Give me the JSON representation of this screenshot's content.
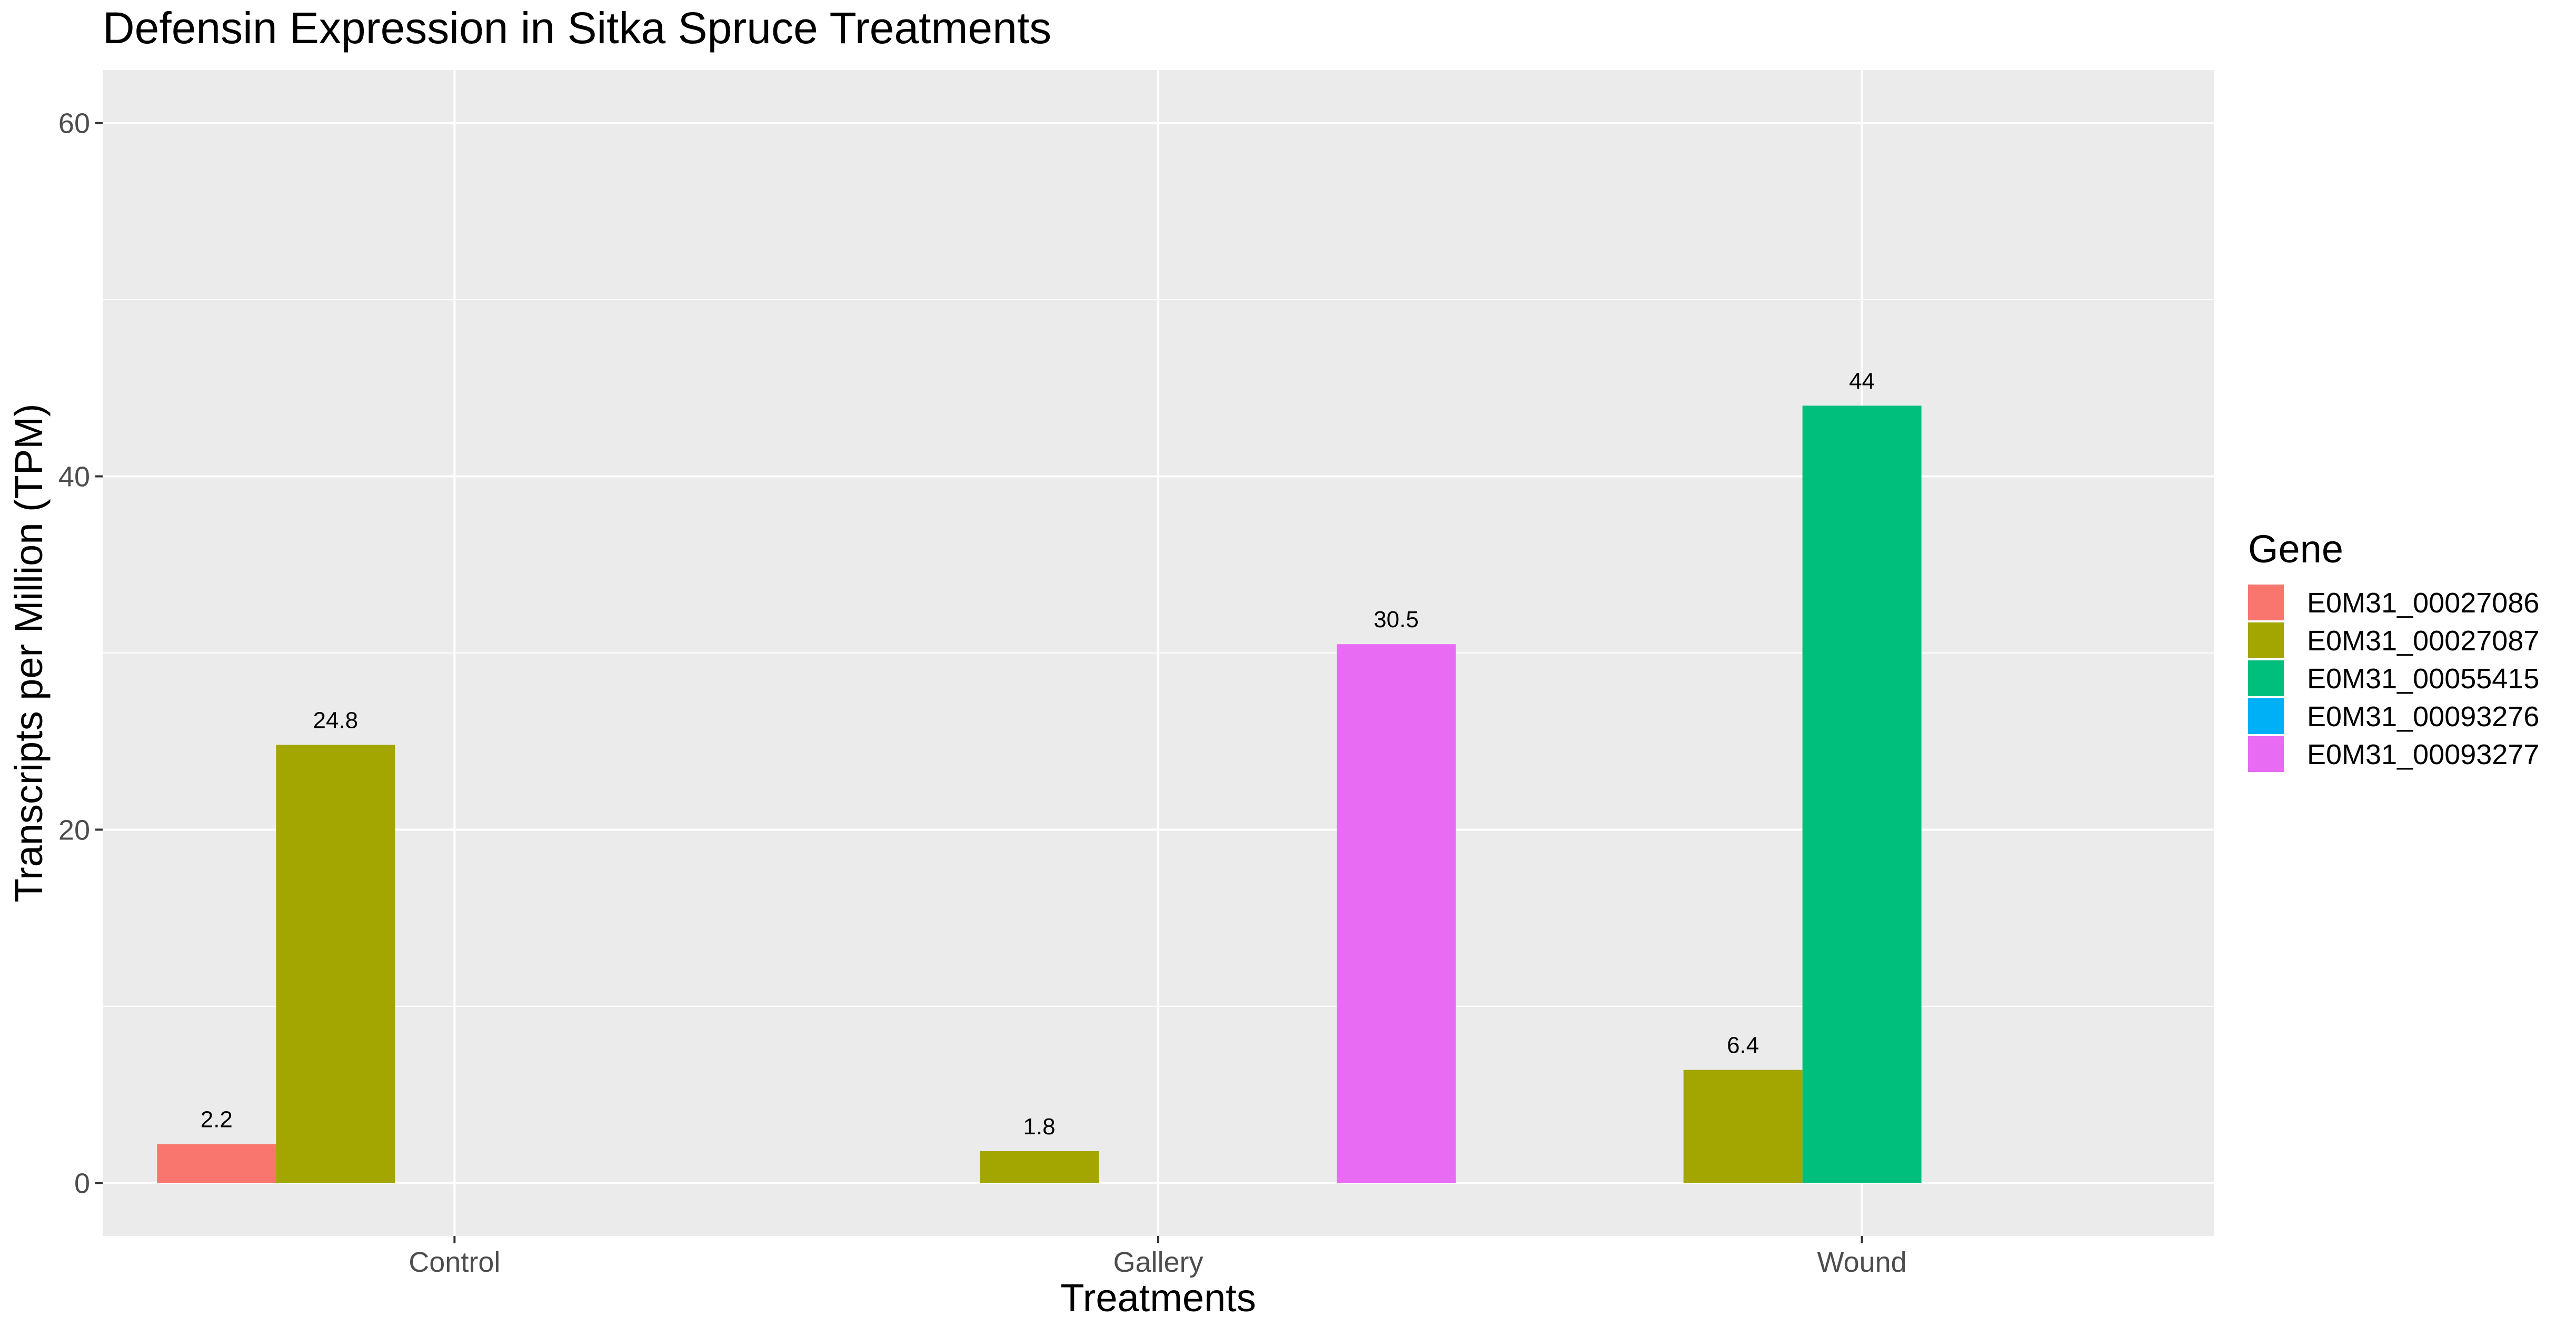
{
  "chart_data": {
    "type": "bar",
    "title": "Defensin Expression in Sitka Spruce Treatments",
    "xlabel": "Treatments",
    "ylabel": "Transcripts per Million (TPM)",
    "categories": [
      "Control",
      "Gallery",
      "Wound"
    ],
    "ylim": [
      -3,
      63
    ],
    "yticks": [
      0,
      20,
      40,
      60
    ],
    "grid": true,
    "legend": {
      "title": "Gene",
      "position": "right"
    },
    "series": [
      {
        "name": "E0M31_00027086",
        "color": "#F8766D",
        "values": [
          2.2,
          0,
          0
        ]
      },
      {
        "name": "E0M31_00027087",
        "color": "#A3A500",
        "values": [
          24.8,
          1.8,
          6.4
        ]
      },
      {
        "name": "E0M31_00055415",
        "color": "#00BF7D",
        "values": [
          0,
          0,
          44
        ]
      },
      {
        "name": "E0M31_00093276",
        "color": "#00B0F6",
        "values": [
          0,
          0,
          0
        ]
      },
      {
        "name": "E0M31_00093277",
        "color": "#E76BF3",
        "values": [
          0,
          30.5,
          0
        ]
      }
    ],
    "data_labels": [
      {
        "series": 0,
        "category": 0,
        "text": "2.2"
      },
      {
        "series": 1,
        "category": 0,
        "text": "24.8"
      },
      {
        "series": 1,
        "category": 1,
        "text": "1.8"
      },
      {
        "series": 4,
        "category": 1,
        "text": "30.5"
      },
      {
        "series": 1,
        "category": 2,
        "text": "6.4"
      },
      {
        "series": 2,
        "category": 2,
        "text": "44"
      }
    ]
  }
}
